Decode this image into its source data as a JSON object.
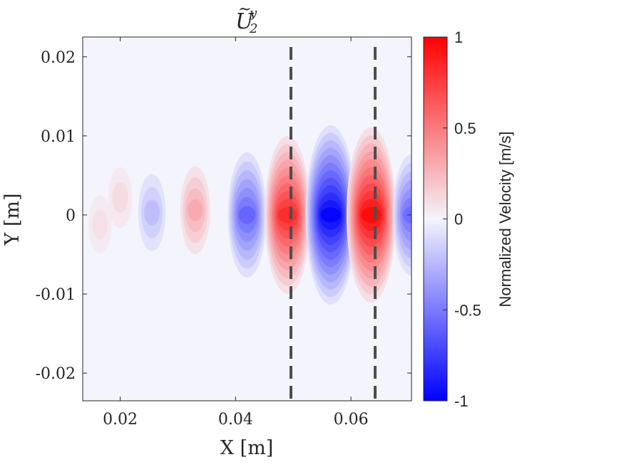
{
  "chart_data": {
    "type": "heatmap",
    "title": {
      "base": "U",
      "subscript": "2",
      "superscript": "y",
      "accent": "~"
    },
    "xlabel": "X [m]",
    "ylabel": "Y [m]",
    "xlim": [
      0.0135,
      0.0705
    ],
    "ylim": [
      -0.0235,
      0.0225
    ],
    "xticks": [
      0.02,
      0.04,
      0.06
    ],
    "xtick_labels": [
      "0.02",
      "0.04",
      "0.06"
    ],
    "yticks": [
      0.02,
      0.01,
      0,
      -0.01,
      -0.02
    ],
    "ytick_labels": [
      "0.02",
      "0.01",
      "0",
      "-0.01",
      "-0.02"
    ],
    "vertical_lines_x": [
      0.0496,
      0.0642
    ],
    "colorbar": {
      "label": "Normalized Velocity [m/s]",
      "range": [
        -1,
        1
      ],
      "ticks": [
        1,
        0.5,
        0,
        -0.5,
        -1
      ],
      "tick_labels": [
        "1",
        "0.5",
        "0",
        "-0.5",
        "-1"
      ],
      "colors": {
        "low": "#0000ff",
        "mid": "#f4f4fc",
        "high": "#ff0000"
      }
    },
    "lobes": [
      {
        "x": 0.0165,
        "y": -0.0012,
        "value": 0.08
      },
      {
        "x": 0.02,
        "y": 0.0022,
        "value": 0.1
      },
      {
        "x": 0.0255,
        "y": 0.0003,
        "value": -0.22
      },
      {
        "x": 0.033,
        "y": 0.0006,
        "value": 0.3
      },
      {
        "x": 0.042,
        "y": 0.0,
        "value": -0.58
      },
      {
        "x": 0.049,
        "y": 0.0,
        "value": 0.82
      },
      {
        "x": 0.0565,
        "y": 0.0,
        "value": -0.98
      },
      {
        "x": 0.0635,
        "y": 0.0,
        "value": 0.95
      },
      {
        "x": 0.0705,
        "y": 0.0,
        "value": -0.55
      }
    ]
  }
}
